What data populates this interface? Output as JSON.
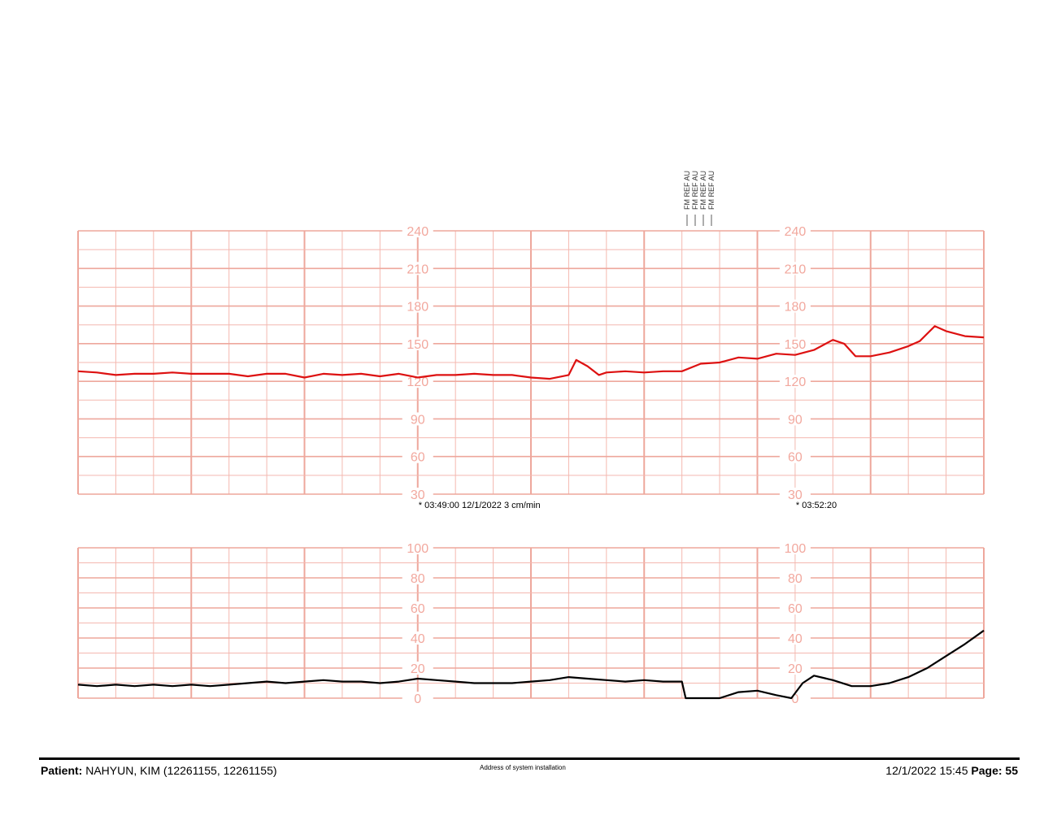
{
  "chart_data": [
    {
      "type": "line",
      "title": "",
      "ylim": [
        30,
        240
      ],
      "yticks": [
        240,
        210,
        180,
        150,
        120,
        90,
        60,
        30
      ],
      "series": [
        {
          "color": "#dd1111",
          "x": [
            0,
            0.5,
            1,
            1.5,
            2,
            2.5,
            3,
            3.5,
            4,
            4.5,
            5,
            5.5,
            6,
            6.5,
            7,
            7.5,
            8,
            8.5,
            9,
            9.5,
            10,
            10.5,
            11,
            11.5,
            12,
            12.5,
            13,
            13.2,
            13.5,
            13.8,
            14,
            14.5,
            15,
            15.5,
            16,
            16.5,
            17,
            17.5,
            18,
            18.5,
            19,
            19.5,
            20,
            20.3,
            20.6,
            21,
            21.5,
            22,
            22.3,
            22.7,
            23,
            23.5,
            24
          ],
          "values": [
            128,
            127,
            125,
            126,
            126,
            127,
            126,
            126,
            126,
            124,
            126,
            126,
            123,
            126,
            125,
            126,
            124,
            126,
            123,
            125,
            125,
            126,
            125,
            125,
            123,
            122,
            125,
            137,
            132,
            125,
            127,
            128,
            127,
            128,
            128,
            134,
            135,
            139,
            138,
            142,
            141,
            145,
            153,
            150,
            140,
            140,
            143,
            148,
            152,
            164,
            160,
            156,
            155
          ]
        }
      ],
      "annotations": [
        {
          "x": 9,
          "text": "* 03:49:00  12/1/2022  3 cm/min"
        },
        {
          "x": 19,
          "text": "* 03:52:20"
        }
      ],
      "legend": [
        "FM REF AU",
        "FM REF AU",
        "FM REF AU",
        "FM REF AU"
      ]
    },
    {
      "type": "line",
      "title": "",
      "ylim": [
        0,
        100
      ],
      "yticks": [
        100,
        80,
        60,
        40,
        20,
        0
      ],
      "series": [
        {
          "color": "#000000",
          "x": [
            0,
            0.5,
            1,
            1.5,
            2,
            2.5,
            3,
            3.5,
            4,
            4.5,
            5,
            5.5,
            6,
            6.5,
            7,
            7.5,
            8,
            8.5,
            9,
            9.5,
            10,
            10.5,
            11,
            11.5,
            12,
            12.5,
            13,
            13.5,
            14,
            14.5,
            15,
            15.5,
            16,
            16.1,
            16.5,
            17,
            17.5,
            18,
            18.5,
            18.9,
            19.2,
            19.5,
            20,
            20.5,
            21,
            21.5,
            22,
            22.5,
            23,
            23.5,
            24
          ],
          "values": [
            9,
            8,
            9,
            8,
            9,
            8,
            9,
            8,
            9,
            10,
            11,
            10,
            11,
            12,
            11,
            11,
            10,
            11,
            13,
            12,
            11,
            10,
            10,
            10,
            11,
            12,
            14,
            13,
            12,
            11,
            12,
            11,
            11,
            0,
            0,
            0,
            4,
            5,
            2,
            0,
            10,
            15,
            12,
            8,
            8,
            10,
            14,
            20,
            28,
            36,
            45
          ]
        }
      ]
    }
  ],
  "footer": {
    "patient_label": "Patient:",
    "patient_value": "NAHYUN, KIM (12261155, 12261155)",
    "center": "Address of system installation",
    "datetime": "12/1/2022 15:45",
    "page_label": "Page:",
    "page_value": "55"
  }
}
